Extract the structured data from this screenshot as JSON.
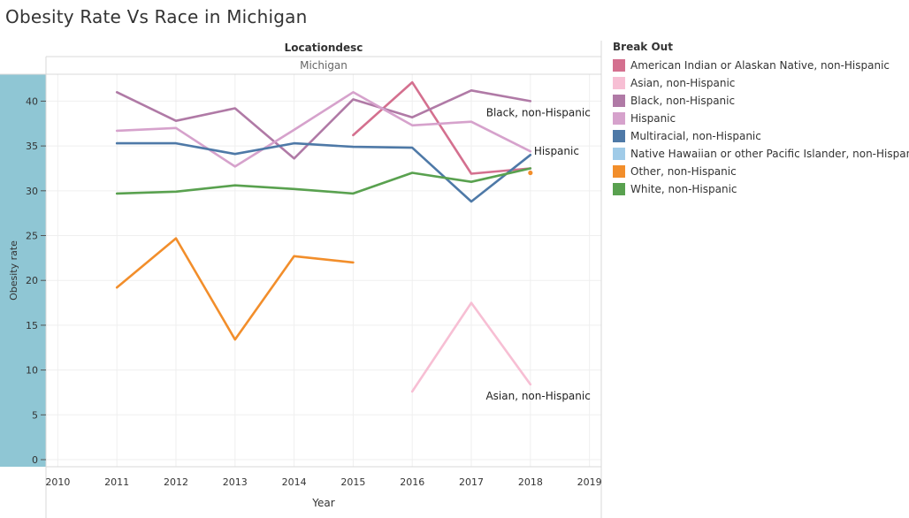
{
  "title": "Obesity Rate Vs Race in Michigan",
  "column_header": {
    "field": "Locationdesc",
    "value": "Michigan"
  },
  "legend": {
    "title": "Break Out",
    "items": [
      {
        "label": "American Indian or Alaskan Native, non-Hispanic",
        "color": "#d4708f"
      },
      {
        "label": "Asian, non-Hispanic",
        "color": "#f7bfd4"
      },
      {
        "label": "Black, non-Hispanic",
        "color": "#b07aa6"
      },
      {
        "label": "Hispanic",
        "color": "#d6a2cc"
      },
      {
        "label": "Multiracial, non-Hispanic",
        "color": "#4e79a7"
      },
      {
        "label": "Native Hawaiian or other Pacific Islander, non-Hispanic",
        "color": "#a0cbe8"
      },
      {
        "label": "Other, non-Hispanic",
        "color": "#f28e2b"
      },
      {
        "label": "White, non-Hispanic",
        "color": "#59a14f"
      }
    ]
  },
  "chart_data": {
    "type": "line",
    "title": "Obesity Rate Vs Race in Michigan",
    "xlabel": "Year",
    "ylabel": "Obesity rate",
    "xlim": [
      2010,
      2019
    ],
    "ylim": [
      0,
      43
    ],
    "x_ticks": [
      2010,
      2011,
      2012,
      2013,
      2014,
      2015,
      2016,
      2017,
      2018,
      2019
    ],
    "y_ticks": [
      0,
      5,
      10,
      15,
      20,
      25,
      30,
      35,
      40
    ],
    "grid": true,
    "series": [
      {
        "name": "American Indian or Alaskan Native, non-Hispanic",
        "color": "#d4708f",
        "segments": [
          [
            [
              2015,
              36.2
            ],
            [
              2016,
              42.1
            ],
            [
              2017,
              31.9
            ],
            [
              2018,
              32.5
            ]
          ]
        ]
      },
      {
        "name": "Asian, non-Hispanic",
        "color": "#f7bfd4",
        "segments": [
          [
            [
              2016,
              7.6
            ],
            [
              2017,
              17.5
            ],
            [
              2018,
              8.4
            ]
          ]
        ]
      },
      {
        "name": "Black, non-Hispanic",
        "color": "#b07aa6",
        "segments": [
          [
            [
              2011,
              41.0
            ],
            [
              2012,
              37.8
            ],
            [
              2013,
              39.2
            ],
            [
              2014,
              33.6
            ],
            [
              2015,
              40.2
            ],
            [
              2016,
              38.2
            ],
            [
              2017,
              41.2
            ],
            [
              2018,
              40.0
            ]
          ]
        ]
      },
      {
        "name": "Hispanic",
        "color": "#d6a2cc",
        "segments": [
          [
            [
              2011,
              36.7
            ],
            [
              2012,
              37.0
            ],
            [
              2013,
              32.7
            ],
            [
              2014,
              36.8
            ],
            [
              2015,
              41.0
            ],
            [
              2016,
              37.3
            ],
            [
              2017,
              37.7
            ],
            [
              2018,
              34.4
            ]
          ]
        ]
      },
      {
        "name": "Multiracial, non-Hispanic",
        "color": "#4e79a7",
        "segments": [
          [
            [
              2011,
              35.3
            ],
            [
              2012,
              35.3
            ],
            [
              2013,
              34.1
            ],
            [
              2014,
              35.3
            ],
            [
              2015,
              34.9
            ],
            [
              2016,
              34.8
            ],
            [
              2017,
              28.8
            ],
            [
              2018,
              34.0
            ]
          ]
        ]
      },
      {
        "name": "Other, non-Hispanic",
        "color": "#f28e2b",
        "segments": [
          [
            [
              2011,
              19.2
            ],
            [
              2012,
              24.7
            ],
            [
              2013,
              13.4
            ],
            [
              2014,
              22.7
            ],
            [
              2015,
              22.0
            ]
          ],
          [
            [
              2018,
              32.0
            ]
          ]
        ]
      },
      {
        "name": "White, non-Hispanic",
        "color": "#59a14f",
        "segments": [
          [
            [
              2011,
              29.7
            ],
            [
              2012,
              29.9
            ],
            [
              2013,
              30.6
            ],
            [
              2014,
              30.2
            ],
            [
              2015,
              29.7
            ],
            [
              2016,
              32.0
            ],
            [
              2017,
              31.0
            ],
            [
              2018,
              32.5
            ]
          ]
        ]
      }
    ],
    "annotations": [
      {
        "text": "Black, non-Hispanic",
        "series": "Black, non-Hispanic"
      },
      {
        "text": "Hispanic",
        "series": "Hispanic"
      },
      {
        "text": "Asian, non-Hispanic",
        "series": "Asian, non-Hispanic"
      }
    ]
  }
}
